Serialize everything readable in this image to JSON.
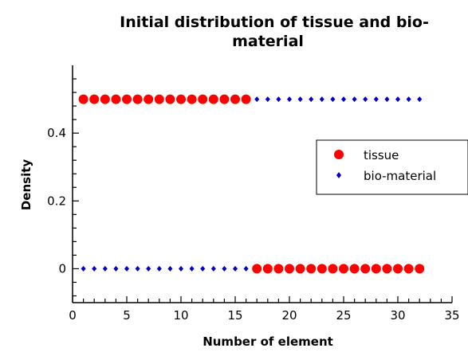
{
  "chart_data": {
    "type": "scatter",
    "title_lines": [
      "Initial distribution of tissue and bio-",
      "material"
    ],
    "xlabel": "Number of element",
    "ylabel": "Density",
    "xlim": [
      0,
      35
    ],
    "ylim": [
      -0.1,
      0.6
    ],
    "xticks": [
      0,
      5,
      10,
      15,
      20,
      25,
      30,
      35
    ],
    "yticks": [
      0,
      0.2,
      0.4
    ],
    "ytick_labels": [
      "0",
      "0.2",
      "0.4"
    ],
    "legend_position": "right",
    "series": [
      {
        "name": "tissue",
        "color": "#ff0000",
        "marker": "circle",
        "x": [
          1,
          2,
          3,
          4,
          5,
          6,
          7,
          8,
          9,
          10,
          11,
          12,
          13,
          14,
          15,
          16,
          17,
          18,
          19,
          20,
          21,
          22,
          23,
          24,
          25,
          26,
          27,
          28,
          29,
          30,
          31,
          32
        ],
        "y": [
          0.5,
          0.5,
          0.5,
          0.5,
          0.5,
          0.5,
          0.5,
          0.5,
          0.5,
          0.5,
          0.5,
          0.5,
          0.5,
          0.5,
          0.5,
          0.5,
          0,
          0,
          0,
          0,
          0,
          0,
          0,
          0,
          0,
          0,
          0,
          0,
          0,
          0,
          0,
          0
        ]
      },
      {
        "name": "bio-material",
        "color": "#0000cc",
        "marker": "diamond",
        "x": [
          1,
          2,
          3,
          4,
          5,
          6,
          7,
          8,
          9,
          10,
          11,
          12,
          13,
          14,
          15,
          16,
          17,
          18,
          19,
          20,
          21,
          22,
          23,
          24,
          25,
          26,
          27,
          28,
          29,
          30,
          31,
          32
        ],
        "y": [
          0,
          0,
          0,
          0,
          0,
          0,
          0,
          0,
          0,
          0,
          0,
          0,
          0,
          0,
          0,
          0,
          0.5,
          0.5,
          0.5,
          0.5,
          0.5,
          0.5,
          0.5,
          0.5,
          0.5,
          0.5,
          0.5,
          0.5,
          0.5,
          0.5,
          0.5,
          0.5
        ]
      }
    ]
  }
}
